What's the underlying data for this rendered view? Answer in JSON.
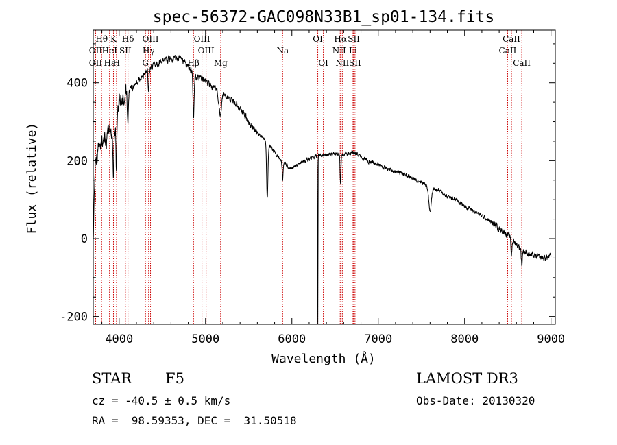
{
  "chart_data": {
    "type": "line",
    "title": "spec-56372-GAC098N33B1_sp01-134.fits",
    "xlabel": "Wavelength (Å)",
    "ylabel": "Flux (relative)",
    "xlim": [
      3700,
      9050
    ],
    "ylim": [
      -220,
      535
    ],
    "xticks": [
      4000,
      5000,
      6000,
      7000,
      8000,
      9000
    ],
    "yticks": [
      -200,
      0,
      200,
      400
    ],
    "spectrum_anchors": [
      [
        3700,
        0
      ],
      [
        3720,
        180
      ],
      [
        3760,
        230
      ],
      [
        3800,
        260
      ],
      [
        3850,
        250
      ],
      [
        3900,
        280
      ],
      [
        3950,
        260
      ],
      [
        4000,
        360
      ],
      [
        4050,
        370
      ],
      [
        4100,
        380
      ],
      [
        4150,
        385
      ],
      [
        4200,
        400
      ],
      [
        4300,
        425
      ],
      [
        4400,
        445
      ],
      [
        4500,
        455
      ],
      [
        4600,
        460
      ],
      [
        4700,
        465
      ],
      [
        4800,
        440
      ],
      [
        4900,
        415
      ],
      [
        5000,
        405
      ],
      [
        5100,
        385
      ],
      [
        5200,
        375
      ],
      [
        5300,
        355
      ],
      [
        5400,
        335
      ],
      [
        5500,
        300
      ],
      [
        5600,
        272
      ],
      [
        5700,
        252
      ],
      [
        5800,
        222
      ],
      [
        5900,
        195
      ],
      [
        6000,
        180
      ],
      [
        6100,
        195
      ],
      [
        6200,
        205
      ],
      [
        6300,
        212
      ],
      [
        6400,
        214
      ],
      [
        6500,
        216
      ],
      [
        6600,
        216
      ],
      [
        6700,
        222
      ],
      [
        6800,
        210
      ],
      [
        6900,
        198
      ],
      [
        7000,
        190
      ],
      [
        7100,
        180
      ],
      [
        7200,
        172
      ],
      [
        7300,
        166
      ],
      [
        7400,
        154
      ],
      [
        7500,
        146
      ],
      [
        7600,
        132
      ],
      [
        7700,
        124
      ],
      [
        7800,
        108
      ],
      [
        7900,
        100
      ],
      [
        8000,
        84
      ],
      [
        8100,
        72
      ],
      [
        8200,
        58
      ],
      [
        8300,
        44
      ],
      [
        8400,
        26
      ],
      [
        8500,
        10
      ],
      [
        8600,
        -15
      ],
      [
        8700,
        -35
      ],
      [
        8800,
        -45
      ],
      [
        8900,
        -50
      ],
      [
        9000,
        -45
      ]
    ],
    "absorption_features": [
      [
        3705,
        0,
        5
      ],
      [
        3933,
        140,
        5
      ],
      [
        3968,
        120,
        5
      ],
      [
        4101,
        80,
        6
      ],
      [
        4340,
        60,
        5
      ],
      [
        4861,
        110,
        7
      ],
      [
        5170,
        60,
        15
      ],
      [
        5715,
        145,
        8
      ],
      [
        5893,
        45,
        6
      ],
      [
        6300,
        520,
        2
      ],
      [
        6563,
        70,
        5
      ],
      [
        7600,
        60,
        15
      ],
      [
        8542,
        40,
        6
      ],
      [
        8662,
        40,
        6
      ]
    ],
    "spectral_lines": [
      {
        "label": "Hθ",
        "wavelength": 3797,
        "row": 0
      },
      {
        "label": "OII",
        "wavelength": 3727,
        "row": 1
      },
      {
        "label": "OII",
        "wavelength": 3727,
        "row": 2
      },
      {
        "label": "Hε",
        "wavelength": 3889,
        "row": 2
      },
      {
        "label": "K",
        "wavelength": 3934,
        "row": 0
      },
      {
        "label": "HeI",
        "wavelength": 3889,
        "row": 1
      },
      {
        "label": "H",
        "wavelength": 3969,
        "row": 2
      },
      {
        "label": "Hδ",
        "wavelength": 4102,
        "row": 0
      },
      {
        "label": "SII",
        "wavelength": 4072,
        "row": 1
      },
      {
        "label": "OIII",
        "wavelength": 4363,
        "row": 0
      },
      {
        "label": "Hγ",
        "wavelength": 4341,
        "row": 1
      },
      {
        "label": "G",
        "wavelength": 4305,
        "row": 2
      },
      {
        "label": "OIII",
        "wavelength": 4959,
        "row": 0
      },
      {
        "label": "OIII",
        "wavelength": 5007,
        "row": 1
      },
      {
        "label": "Hβ",
        "wavelength": 4861,
        "row": 2
      },
      {
        "label": "Mg",
        "wavelength": 5175,
        "row": 2
      },
      {
        "label": "Na",
        "wavelength": 5893,
        "row": 1
      },
      {
        "label": "OI",
        "wavelength": 6300,
        "row": 0
      },
      {
        "label": "OI",
        "wavelength": 6364,
        "row": 2
      },
      {
        "label": "Hα",
        "wavelength": 6563,
        "row": 0
      },
      {
        "label": "NII",
        "wavelength": 6548,
        "row": 1
      },
      {
        "label": "NII",
        "wavelength": 6584,
        "row": 2
      },
      {
        "label": "SII",
        "wavelength": 6717,
        "row": 0
      },
      {
        "label": "Li",
        "wavelength": 6708,
        "row": 1
      },
      {
        "label": "SII",
        "wavelength": 6731,
        "row": 2
      },
      {
        "label": "CaII",
        "wavelength": 8542,
        "row": 0
      },
      {
        "label": "CaII",
        "wavelength": 8498,
        "row": 1
      },
      {
        "label": "CaII",
        "wavelength": 8662,
        "row": 2
      }
    ],
    "colors": {
      "spectrum": "#000000",
      "line_marker": "#cc0000",
      "axes": "#000000"
    }
  },
  "info": {
    "class_label": "STAR",
    "subclass": "F5",
    "redshift": "cz = -40.5 ± 0.5 km/s",
    "coords": "RA =  98.59353, DEC =  31.50518",
    "survey": "LAMOST DR3",
    "obs_date": "Obs-Date: 20130320"
  }
}
